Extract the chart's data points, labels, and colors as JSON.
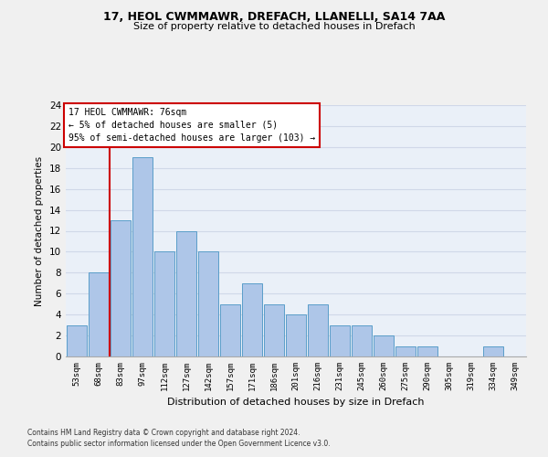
{
  "title1": "17, HEOL CWMMAWR, DREFACH, LLANELLI, SA14 7AA",
  "title2": "Size of property relative to detached houses in Drefach",
  "xlabel": "Distribution of detached houses by size in Drefach",
  "ylabel": "Number of detached properties",
  "bar_labels": [
    "53sqm",
    "68sqm",
    "83sqm",
    "97sqm",
    "112sqm",
    "127sqm",
    "142sqm",
    "157sqm",
    "171sqm",
    "186sqm",
    "201sqm",
    "216sqm",
    "231sqm",
    "245sqm",
    "260sqm",
    "275sqm",
    "290sqm",
    "305sqm",
    "319sqm",
    "334sqm",
    "349sqm"
  ],
  "bar_values": [
    3,
    8,
    13,
    19,
    10,
    12,
    10,
    5,
    7,
    5,
    4,
    5,
    3,
    3,
    2,
    1,
    1,
    0,
    0,
    1,
    0
  ],
  "bar_color": "#aec6e8",
  "bar_edge_color": "#5a9ec9",
  "grid_color": "#d0d8e8",
  "bg_color": "#eaf0f8",
  "fig_color": "#f0f0f0",
  "annotation_title": "17 HEOL CWMMAWR: 76sqm",
  "annotation_line1": "← 5% of detached houses are smaller (5)",
  "annotation_line2": "95% of semi-detached houses are larger (103) →",
  "annotation_box_color": "#ffffff",
  "annotation_border_color": "#cc0000",
  "red_line_color": "#cc0000",
  "red_line_x": 1.5,
  "ylim": [
    0,
    24
  ],
  "yticks": [
    0,
    2,
    4,
    6,
    8,
    10,
    12,
    14,
    16,
    18,
    20,
    22,
    24
  ],
  "footer1": "Contains HM Land Registry data © Crown copyright and database right 2024.",
  "footer2": "Contains public sector information licensed under the Open Government Licence v3.0."
}
